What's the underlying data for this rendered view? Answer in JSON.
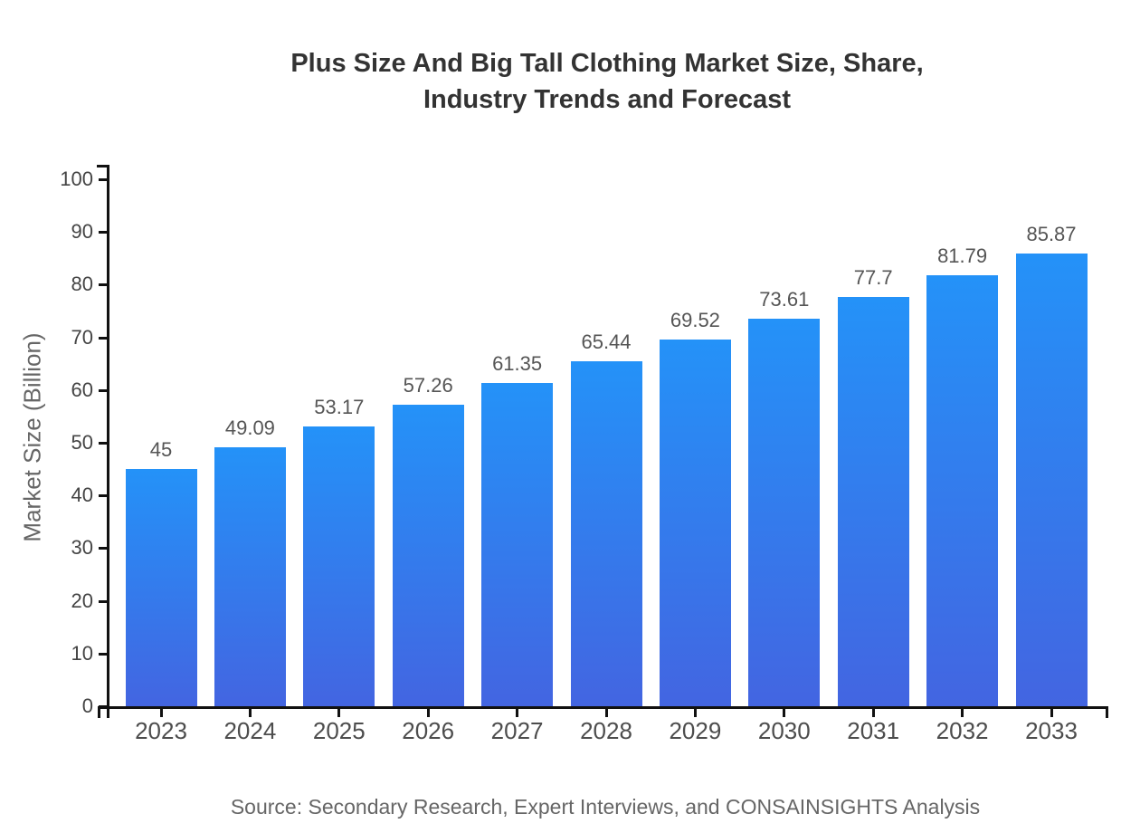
{
  "title": {
    "line1": "Plus Size And Big Tall Clothing Market Size, Share,",
    "line2": "Industry Trends and Forecast"
  },
  "source_note": "Source: Secondary Research, Expert Interviews, and CONSAINSIGHTS Analysis",
  "chart_data": {
    "type": "bar",
    "title": "Plus Size And Big Tall Clothing Market Size, Share, Industry Trends and Forecast",
    "categories": [
      "2023",
      "2024",
      "2025",
      "2026",
      "2027",
      "2028",
      "2029",
      "2030",
      "2031",
      "2032",
      "2033"
    ],
    "values": [
      45,
      49.09,
      53.17,
      57.26,
      61.35,
      65.44,
      69.52,
      73.61,
      77.7,
      81.79,
      85.87
    ],
    "value_labels": [
      "45",
      "49.09",
      "53.17",
      "57.26",
      "61.35",
      "65.44",
      "69.52",
      "73.61",
      "77.7",
      "81.79",
      "85.87"
    ],
    "xlabel": "",
    "ylabel": "Market Size (Billion)",
    "ylim": [
      0,
      100
    ],
    "yticks": [
      0,
      10,
      20,
      30,
      40,
      50,
      60,
      70,
      80,
      90,
      100
    ],
    "ytick_labels": [
      "0",
      "10",
      "20",
      "30",
      "40",
      "50",
      "60",
      "70",
      "80",
      "90",
      "100"
    ],
    "grid": false,
    "legend": "none",
    "colors": {
      "bar_top": "#2492f8",
      "bar_bottom": "#4365e1",
      "axis": "#111111",
      "title_text": "#333333",
      "tick_text": "#444444",
      "category_text": "#4d4d4d",
      "value_text": "#555555",
      "secondary_text": "#666666",
      "background": "#ffffff"
    }
  }
}
